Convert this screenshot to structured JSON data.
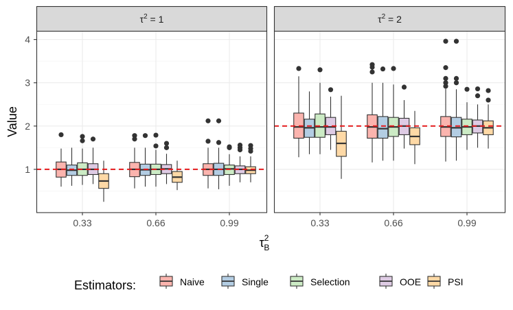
{
  "chart_data": {
    "type": "boxplot",
    "ylabel": "Value",
    "xlabel_main": "τ",
    "xlabel_sup": "2",
    "xlabel_sub": "B",
    "ylim": [
      0,
      4.2
    ],
    "yticks": [
      1,
      2,
      3,
      4
    ],
    "x_categories": [
      "0.33",
      "0.66",
      "0.99"
    ],
    "legend_title": "Estimators:",
    "estimators": [
      {
        "name": "Naive",
        "color": "#fbb4ae"
      },
      {
        "name": "Single",
        "color": "#b3cde3"
      },
      {
        "name": "Selection",
        "color": "#ccebc5"
      },
      {
        "name": "OOE",
        "color": "#decbe4"
      },
      {
        "name": "PSI",
        "color": "#fed9a6"
      }
    ],
    "reference_color": "#e41a1c",
    "panels": [
      {
        "label_base": "τ",
        "label_sup": "2",
        "label_rest": " = 1",
        "reference": 1,
        "groups": [
          {
            "x": "0.33",
            "boxes": [
              {
                "q1": 0.82,
                "med": 1.0,
                "q3": 1.17,
                "lo": 0.6,
                "hi": 1.48,
                "out": [
                  1.8
                ]
              },
              {
                "q1": 0.86,
                "med": 0.98,
                "q3": 1.1,
                "lo": 0.62,
                "hi": 1.5,
                "out": []
              },
              {
                "q1": 0.86,
                "med": 1.0,
                "q3": 1.15,
                "lo": 0.64,
                "hi": 1.48,
                "out": [
                  1.76,
                  1.66
                ]
              },
              {
                "q1": 0.88,
                "med": 1.0,
                "q3": 1.13,
                "lo": 0.66,
                "hi": 1.5,
                "out": [
                  1.7
                ]
              },
              {
                "q1": 0.56,
                "med": 0.73,
                "q3": 0.9,
                "lo": 0.25,
                "hi": 1.2,
                "out": []
              }
            ]
          },
          {
            "x": "0.66",
            "boxes": [
              {
                "q1": 0.83,
                "med": 1.0,
                "q3": 1.16,
                "lo": 0.56,
                "hi": 1.5,
                "out": [
                  1.78,
                  1.7
                ]
              },
              {
                "q1": 0.86,
                "med": 0.99,
                "q3": 1.12,
                "lo": 0.6,
                "hi": 1.5,
                "out": [
                  1.78
                ]
              },
              {
                "q1": 0.88,
                "med": 1.0,
                "q3": 1.12,
                "lo": 0.6,
                "hi": 1.45,
                "out": [
                  1.79,
                  1.54
                ]
              },
              {
                "q1": 0.9,
                "med": 1.01,
                "q3": 1.11,
                "lo": 0.66,
                "hi": 1.36,
                "out": [
                  1.6,
                  1.5
                ]
              },
              {
                "q1": 0.7,
                "med": 0.82,
                "q3": 0.95,
                "lo": 0.52,
                "hi": 1.2,
                "out": []
              }
            ]
          },
          {
            "x": "0.99",
            "boxes": [
              {
                "q1": 0.86,
                "med": 1.0,
                "q3": 1.13,
                "lo": 0.56,
                "hi": 1.5,
                "out": [
                  2.12,
                  1.65
                ]
              },
              {
                "q1": 0.86,
                "med": 1.0,
                "q3": 1.14,
                "lo": 0.54,
                "hi": 1.5,
                "out": [
                  2.12,
                  1.62
                ]
              },
              {
                "q1": 0.88,
                "med": 1.01,
                "q3": 1.1,
                "lo": 0.62,
                "hi": 1.35,
                "out": [
                  1.52,
                  1.5
                ]
              },
              {
                "q1": 0.9,
                "med": 1.0,
                "q3": 1.08,
                "lo": 0.7,
                "hi": 1.3,
                "out": [
                  1.56,
                  1.5,
                  1.45
                ]
              },
              {
                "q1": 0.9,
                "med": 0.98,
                "q3": 1.06,
                "lo": 0.7,
                "hi": 1.3,
                "out": [
                  1.55,
                  1.48,
                  1.42
                ]
              }
            ]
          }
        ]
      },
      {
        "label_base": "τ",
        "label_sup": "2",
        "label_rest": " = 2",
        "reference": 2,
        "groups": [
          {
            "x": "0.33",
            "boxes": [
              {
                "q1": 1.72,
                "med": 1.98,
                "q3": 2.3,
                "lo": 1.28,
                "hi": 3.15,
                "out": [
                  3.33
                ]
              },
              {
                "q1": 1.74,
                "med": 1.96,
                "q3": 2.16,
                "lo": 1.35,
                "hi": 2.8,
                "out": []
              },
              {
                "q1": 1.74,
                "med": 1.98,
                "q3": 2.28,
                "lo": 1.35,
                "hi": 3.0,
                "out": [
                  3.3
                ]
              },
              {
                "q1": 1.8,
                "med": 1.98,
                "q3": 2.2,
                "lo": 1.45,
                "hi": 2.68,
                "out": [
                  2.84
                ]
              },
              {
                "q1": 1.3,
                "med": 1.6,
                "q3": 1.88,
                "lo": 0.78,
                "hi": 2.7,
                "out": []
              }
            ]
          },
          {
            "x": "0.66",
            "boxes": [
              {
                "q1": 1.72,
                "med": 1.98,
                "q3": 2.26,
                "lo": 1.16,
                "hi": 3.0,
                "out": [
                  3.42,
                  3.36,
                  3.25
                ]
              },
              {
                "q1": 1.72,
                "med": 1.94,
                "q3": 2.22,
                "lo": 1.2,
                "hi": 3.0,
                "out": [
                  3.32
                ]
              },
              {
                "q1": 1.76,
                "med": 1.98,
                "q3": 2.2,
                "lo": 1.2,
                "hi": 2.96,
                "out": [
                  3.33
                ]
              },
              {
                "q1": 1.8,
                "med": 2.0,
                "q3": 2.18,
                "lo": 1.48,
                "hi": 2.6,
                "out": [
                  2.9
                ]
              },
              {
                "q1": 1.57,
                "med": 1.76,
                "q3": 1.96,
                "lo": 1.12,
                "hi": 2.35,
                "out": []
              }
            ]
          },
          {
            "x": "0.99",
            "boxes": [
              {
                "q1": 1.76,
                "med": 1.98,
                "q3": 2.22,
                "lo": 1.18,
                "hi": 2.86,
                "out": [
                  3.96,
                  3.35,
                  3.1,
                  3.0,
                  2.92
                ]
              },
              {
                "q1": 1.75,
                "med": 1.96,
                "q3": 2.2,
                "lo": 1.2,
                "hi": 2.85,
                "out": [
                  3.96,
                  3.1,
                  3.0
                ]
              },
              {
                "q1": 1.8,
                "med": 1.98,
                "q3": 2.16,
                "lo": 1.45,
                "hi": 2.55,
                "out": [
                  2.85
                ]
              },
              {
                "q1": 1.84,
                "med": 2.0,
                "q3": 2.14,
                "lo": 1.5,
                "hi": 2.5,
                "out": [
                  2.86,
                  2.7
                ]
              },
              {
                "q1": 1.8,
                "med": 1.96,
                "q3": 2.12,
                "lo": 1.48,
                "hi": 2.5,
                "out": [
                  2.82,
                  2.6
                ]
              }
            ]
          }
        ]
      }
    ]
  }
}
